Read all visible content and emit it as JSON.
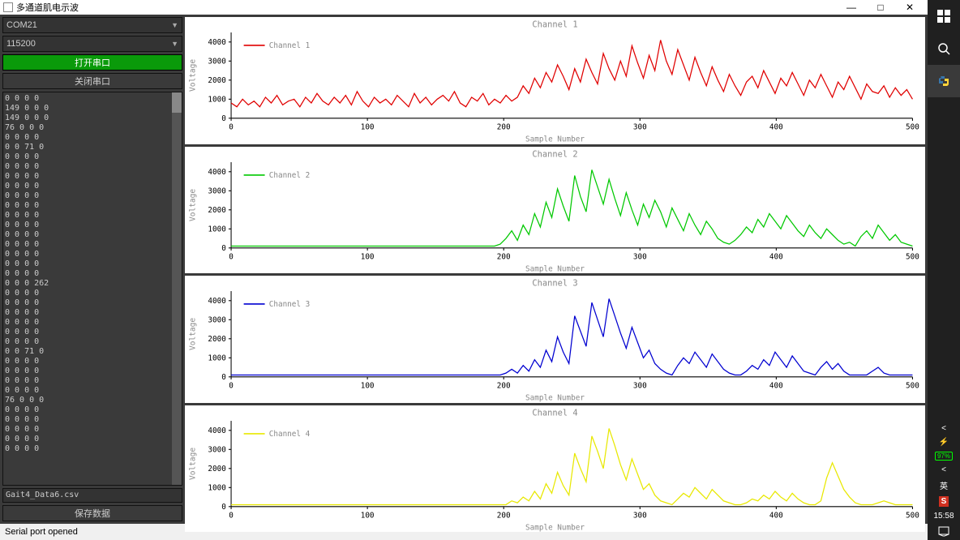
{
  "window": {
    "title": "多通道肌电示波",
    "minimize": "—",
    "maximize": "□",
    "close": "✕"
  },
  "controls": {
    "port_value": "COM21",
    "baud_value": "115200",
    "open_btn": "打开串口",
    "close_btn": "关闭串口",
    "save_btn": "保存数据",
    "filename": "Gait4_Data6.csv"
  },
  "log_lines": [
    "0 0 0 0",
    "149 0 0 0",
    "149 0 0 0",
    "76 0 0 0",
    "0 0 0 0",
    "0 0 71 0",
    "0 0 0 0",
    "0 0 0 0",
    "0 0 0 0",
    "0 0 0 0",
    "0 0 0 0",
    "0 0 0 0",
    "0 0 0 0",
    "0 0 0 0",
    "0 0 0 0",
    "0 0 0 0",
    "0 0 0 0",
    "0 0 0 0",
    "0 0 0 0",
    "0 0 0 262",
    "0 0 0 0",
    "0 0 0 0",
    "0 0 0 0",
    "0 0 0 0",
    "0 0 0 0",
    "0 0 0 0",
    "0 0 71 0",
    "0 0 0 0",
    "0 0 0 0",
    "0 0 0 0",
    "0 0 0 0",
    "76 0 0 0",
    "0 0 0 0",
    "0 0 0 0",
    "0 0 0 0",
    "0 0 0 0",
    "0 0 0 0"
  ],
  "status_text": "Serial port opened",
  "clock": "15:58",
  "ime": "英",
  "battery": "97%",
  "chart_common": {
    "xlim": [
      0,
      500
    ],
    "ylim": [
      0,
      4500
    ],
    "yticks": [
      0,
      1000,
      2000,
      3000,
      4000
    ],
    "xticks": [
      0,
      100,
      200,
      300,
      400,
      500
    ],
    "xlabel": "Sample Number",
    "ylabel": "Voltage",
    "title_fontsize": 10,
    "tick_fontsize": 9,
    "label_fontsize": 9,
    "bg": "#ffffff",
    "axis_color": "#000000"
  },
  "charts": [
    {
      "title": "Channel 1",
      "legend": "Channel 1",
      "color": "#e00000",
      "data": [
        800,
        600,
        1000,
        700,
        900,
        600,
        1100,
        800,
        1200,
        700,
        900,
        1000,
        600,
        1100,
        800,
        1300,
        900,
        700,
        1100,
        800,
        1200,
        700,
        1400,
        900,
        600,
        1100,
        800,
        1000,
        700,
        1200,
        900,
        600,
        1300,
        800,
        1100,
        700,
        1000,
        1200,
        900,
        1400,
        800,
        600,
        1100,
        900,
        1300,
        700,
        1000,
        800,
        1200,
        900,
        1100,
        1700,
        1300,
        2100,
        1600,
        2400,
        1900,
        2800,
        2200,
        1500,
        2600,
        1900,
        3100,
        2400,
        1800,
        3400,
        2600,
        2000,
        3000,
        2200,
        3800,
        2900,
        2100,
        3300,
        2500,
        4100,
        3000,
        2300,
        3600,
        2800,
        2000,
        3200,
        2400,
        1700,
        2700,
        2000,
        1400,
        2300,
        1700,
        1200,
        1900,
        2200,
        1600,
        2500,
        1900,
        1300,
        2100,
        1700,
        2400,
        1800,
        1200,
        2000,
        1600,
        2300,
        1700,
        1100,
        1900,
        1500,
        2200,
        1600,
        1000,
        1800,
        1400,
        1300,
        1700,
        1100,
        1600,
        1200,
        1500,
        1000
      ]
    },
    {
      "title": "Channel 2",
      "legend": "Channel 2",
      "color": "#00c800",
      "data": [
        100,
        100,
        100,
        100,
        100,
        100,
        100,
        100,
        100,
        100,
        100,
        100,
        100,
        100,
        100,
        100,
        100,
        100,
        100,
        100,
        100,
        100,
        100,
        100,
        100,
        100,
        100,
        100,
        100,
        100,
        100,
        100,
        100,
        100,
        100,
        100,
        100,
        100,
        100,
        100,
        100,
        100,
        100,
        100,
        100,
        100,
        100,
        200,
        500,
        900,
        400,
        1200,
        700,
        1800,
        1100,
        2400,
        1600,
        3100,
        2200,
        1400,
        3800,
        2700,
        1900,
        4100,
        3200,
        2300,
        3600,
        2600,
        1700,
        2900,
        2000,
        1200,
        2300,
        1600,
        2500,
        1900,
        1100,
        2100,
        1500,
        900,
        1800,
        1200,
        700,
        1400,
        1000,
        500,
        300,
        200,
        400,
        700,
        1100,
        800,
        1500,
        1100,
        1800,
        1400,
        1000,
        1700,
        1300,
        900,
        600,
        1200,
        800,
        500,
        1000,
        700,
        400,
        200,
        300,
        100,
        600,
        900,
        500,
        1200,
        800,
        400,
        700,
        300,
        200,
        100
      ]
    },
    {
      "title": "Channel 3",
      "legend": "Channel 3",
      "color": "#0000d0",
      "data": [
        100,
        100,
        100,
        100,
        100,
        100,
        100,
        100,
        100,
        100,
        100,
        100,
        100,
        100,
        100,
        100,
        100,
        100,
        100,
        100,
        100,
        100,
        100,
        100,
        100,
        100,
        100,
        100,
        100,
        100,
        100,
        100,
        100,
        100,
        100,
        100,
        100,
        100,
        100,
        100,
        100,
        100,
        100,
        100,
        100,
        100,
        100,
        100,
        200,
        400,
        200,
        600,
        300,
        900,
        500,
        1400,
        800,
        2100,
        1300,
        700,
        3200,
        2400,
        1600,
        3900,
        3000,
        2100,
        4100,
        3200,
        2300,
        1500,
        2600,
        1800,
        1000,
        1400,
        700,
        400,
        200,
        100,
        600,
        1000,
        700,
        1300,
        900,
        500,
        1200,
        800,
        400,
        200,
        100,
        100,
        300,
        600,
        400,
        900,
        600,
        1300,
        900,
        500,
        1100,
        700,
        300,
        200,
        100,
        500,
        800,
        400,
        700,
        300,
        100,
        100,
        100,
        100,
        300,
        500,
        200,
        100,
        100,
        100,
        100,
        100
      ]
    },
    {
      "title": "Channel 4",
      "legend": "Channel 4",
      "color": "#e8e800",
      "data": [
        100,
        100,
        100,
        100,
        100,
        100,
        100,
        100,
        100,
        100,
        100,
        100,
        100,
        100,
        100,
        100,
        100,
        100,
        100,
        100,
        100,
        100,
        100,
        100,
        100,
        100,
        100,
        100,
        100,
        100,
        100,
        100,
        100,
        100,
        100,
        100,
        100,
        100,
        100,
        100,
        100,
        100,
        100,
        100,
        100,
        100,
        100,
        100,
        100,
        300,
        200,
        500,
        300,
        800,
        400,
        1200,
        700,
        1800,
        1100,
        600,
        2800,
        2000,
        1300,
        3700,
        2900,
        2000,
        4100,
        3200,
        2200,
        1400,
        2500,
        1700,
        900,
        1200,
        600,
        300,
        200,
        100,
        400,
        700,
        500,
        1000,
        700,
        400,
        900,
        600,
        300,
        200,
        100,
        100,
        200,
        400,
        300,
        600,
        400,
        800,
        500,
        300,
        700,
        400,
        200,
        100,
        100,
        300,
        1500,
        2300,
        1600,
        900,
        500,
        200,
        100,
        100,
        100,
        200,
        300,
        200,
        100,
        100,
        100,
        100
      ]
    }
  ]
}
